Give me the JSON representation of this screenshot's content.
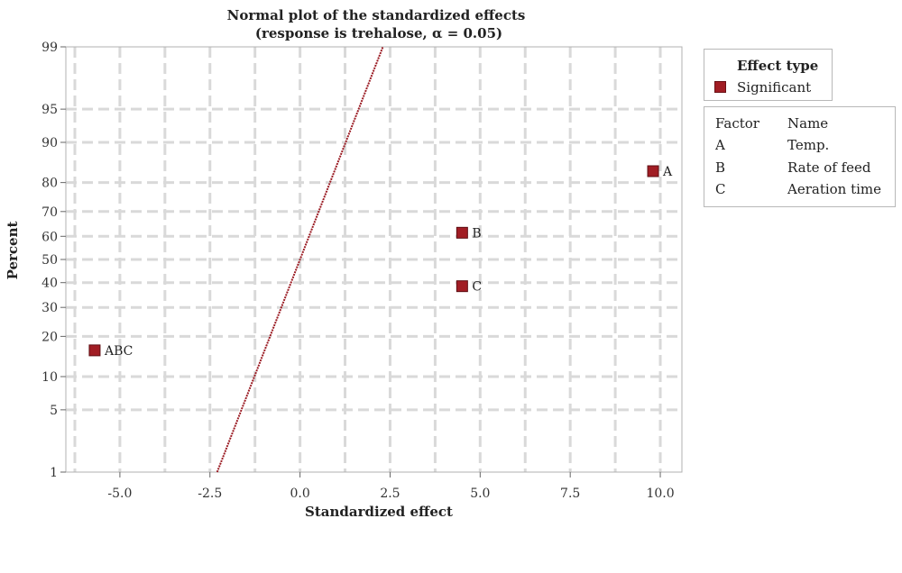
{
  "chart_data": {
    "type": "scatter",
    "title": "Normal plot of the standardized effects",
    "subtitle": "(response is trehalose, α = 0.05)",
    "xlabel": "Standardized effect",
    "ylabel": "Percent",
    "xlim": [
      -6.5,
      10.6
    ],
    "xticks": [
      -5.0,
      -2.5,
      0.0,
      2.5,
      5.0,
      7.5,
      10.0
    ],
    "xtick_labels": [
      "-5.0",
      "-2.5",
      "0.0",
      "2.5",
      "5.0",
      "7.5",
      "10.0"
    ],
    "yscale": "normal-probability",
    "ylim": [
      1,
      99
    ],
    "yticks": [
      1,
      5,
      10,
      20,
      30,
      40,
      50,
      60,
      70,
      80,
      90,
      95,
      99
    ],
    "ytick_labels": [
      "1",
      "5",
      "10",
      "20",
      "30",
      "40",
      "50",
      "60",
      "70",
      "80",
      "90",
      "95",
      "99"
    ],
    "grid": true,
    "reference_line": {
      "x_at_p1": -2.3,
      "x_at_p99": 2.3,
      "color": "#9b1c24"
    },
    "points": [
      {
        "label": "A",
        "x": 9.8,
        "y": 83.3
      },
      {
        "label": "B",
        "x": 4.5,
        "y": 61.5
      },
      {
        "label": "C",
        "x": 4.5,
        "y": 38.5
      },
      {
        "label": "ABC",
        "x": -5.7,
        "y": 16.0
      }
    ],
    "point_color": "#a11d24",
    "legend": {
      "title": "Effect type",
      "entries": [
        {
          "name": "Significant",
          "color": "#a11d24"
        }
      ],
      "placement": "right"
    },
    "factor_table": {
      "headers": [
        "Factor",
        "Name"
      ],
      "rows": [
        [
          "A",
          "Temp."
        ],
        [
          "B",
          "Rate of feed"
        ],
        [
          "C",
          "Aeration time"
        ]
      ]
    }
  }
}
